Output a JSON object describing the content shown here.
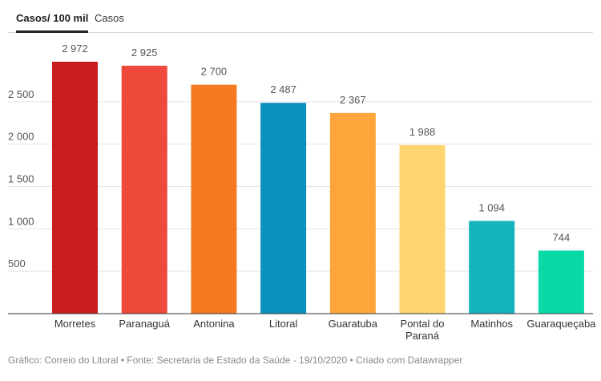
{
  "tabs": [
    {
      "label": "Casos/ 100 mil",
      "active": true
    },
    {
      "label": "Casos",
      "active": false
    }
  ],
  "chart_data": {
    "type": "bar",
    "categories": [
      "Morretes",
      "Paranaguá",
      "Antonina",
      "Litoral",
      "Guaratuba",
      [
        "Pontal do",
        "Paraná"
      ],
      "Matinhos",
      "Guaraqueçaba"
    ],
    "values": [
      2972,
      2925,
      2700,
      2487,
      2367,
      1988,
      1094,
      744
    ],
    "value_labels": [
      "2 972",
      "2 925",
      "2 700",
      "2 487",
      "2 367",
      "1 988",
      "1 094",
      "744"
    ],
    "colors": [
      "#c71e1d",
      "#ee493a",
      "#f47a20",
      "#0a91c0",
      "#fda53b",
      "#fed56f",
      "#15b4bb",
      "#09d8a7"
    ],
    "yticks": [
      500,
      1000,
      1500,
      2000,
      2500
    ],
    "ytick_labels": [
      "500",
      "1 000",
      "1 500",
      "2 000",
      "2 500"
    ],
    "ylim": [
      0,
      3200
    ],
    "grid": true
  },
  "footer": "Gráfico: Correio do Litoral • Fonte: Secretaria de Estado da Saúde - 19/10/2020 • Criado com Datawrapper"
}
